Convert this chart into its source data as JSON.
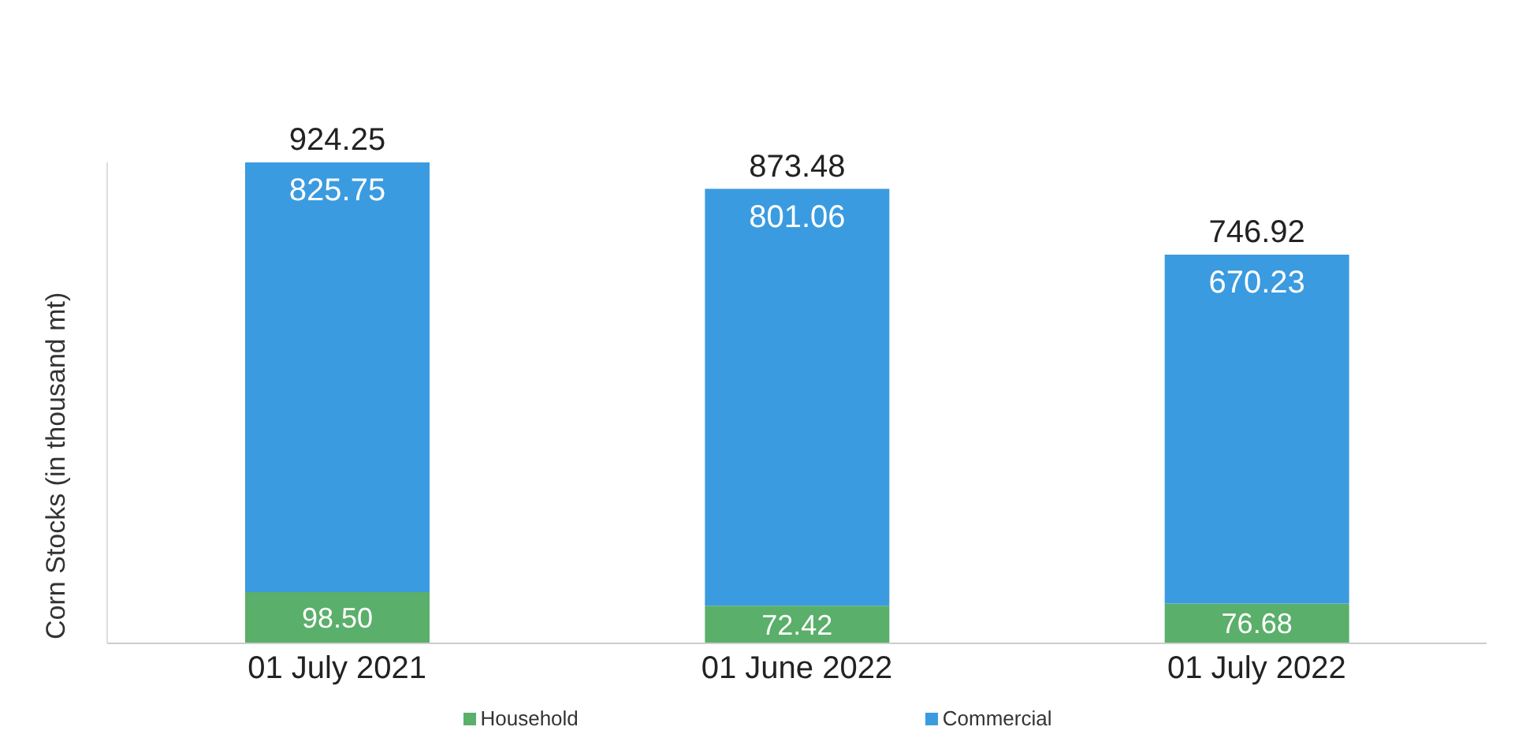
{
  "chart_data": {
    "type": "bar",
    "ylabel": "Corn Stocks (in thousand mt)",
    "categories": [
      "01 July 2021",
      "01 June 2022",
      "01 July 2022"
    ],
    "stacked": true,
    "series": [
      {
        "name": "Household",
        "color": "#5aaf6a",
        "values": [
          98.5,
          72.42,
          76.68
        ],
        "value_labels": [
          "98.50",
          "72.42",
          "76.68"
        ]
      },
      {
        "name": "Commercial",
        "color": "#3a9be0",
        "values": [
          825.75,
          801.06,
          670.23
        ],
        "value_labels": [
          "825.75",
          "801.06",
          "670.23"
        ]
      }
    ],
    "totals": [
      "924.25",
      "873.48",
      "746.92"
    ],
    "legend": "bottom",
    "grid": false
  }
}
